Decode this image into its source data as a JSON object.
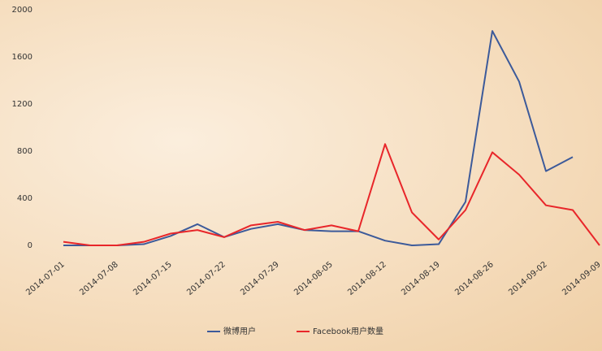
{
  "chart_data": {
    "type": "line",
    "categories": [
      "2014-07-01",
      null,
      "2014-07-08",
      null,
      "2014-07-15",
      null,
      "2014-07-22",
      null,
      "2014-07-29",
      null,
      "2014-08-05",
      null,
      "2014-08-12",
      null,
      "2014-08-19",
      null,
      "2014-08-26",
      null,
      "2014-09-02",
      null,
      "2014-09-09"
    ],
    "series": [
      {
        "name": "微博用户",
        "color": "#3c5a9a",
        "values": [
          0,
          0,
          0,
          10,
          80,
          180,
          70,
          140,
          180,
          130,
          120,
          120,
          40,
          0,
          10,
          370,
          1820,
          1390,
          630,
          750,
          null
        ]
      },
      {
        "name": "Facebook用户数量",
        "color": "#e8262a",
        "values": [
          30,
          0,
          0,
          30,
          100,
          130,
          70,
          170,
          200,
          130,
          170,
          120,
          860,
          280,
          50,
          300,
          790,
          600,
          340,
          300,
          0
        ]
      }
    ],
    "ylim": [
      0,
      2000
    ],
    "yticks": [
      0,
      400,
      800,
      1200,
      1600,
      2000
    ],
    "grid": false,
    "legend": "bottom"
  }
}
